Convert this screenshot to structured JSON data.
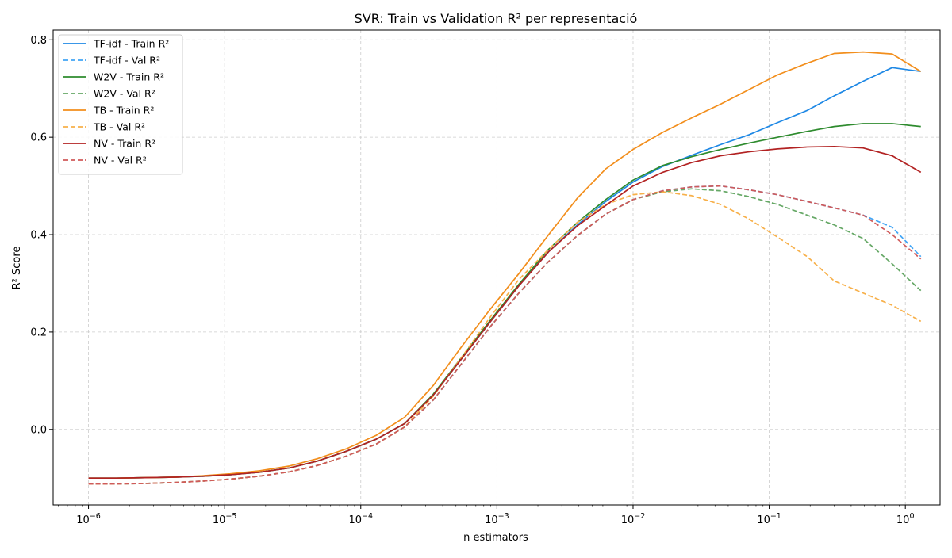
{
  "chart_data": {
    "type": "line",
    "title": "SVR: Train vs Validation R² per representació",
    "xlabel": "n estimators",
    "ylabel": "R² Score",
    "xscale": "log",
    "xlim": [
      5.5e-07,
      1.8
    ],
    "ylim": [
      -0.155,
      0.82
    ],
    "grid": true,
    "legend_position": "top-left",
    "yticks": [
      0.0,
      0.2,
      0.4,
      0.6,
      0.8
    ],
    "ytick_labels": [
      "0.0",
      "0.2",
      "0.4",
      "0.6",
      "0.8"
    ],
    "xticks": [
      {
        "value": 1e-06,
        "base": "10",
        "exp": "−6"
      },
      {
        "value": 1e-05,
        "base": "10",
        "exp": "−5"
      },
      {
        "value": 0.0001,
        "base": "10",
        "exp": "−4"
      },
      {
        "value": 0.001,
        "base": "10",
        "exp": "−3"
      },
      {
        "value": 0.01,
        "base": "10",
        "exp": "−2"
      },
      {
        "value": 0.1,
        "base": "10",
        "exp": "−1"
      },
      {
        "value": 1,
        "base": "10",
        "exp": "0"
      }
    ],
    "x": [
      1e-06,
      1.6e-06,
      2.6e-06,
      4.3e-06,
      7e-06,
      1.1e-05,
      1.8e-05,
      3e-05,
      4.8e-05,
      7.8e-05,
      0.00013,
      0.00021,
      0.00034,
      0.00055,
      0.0009,
      0.00145,
      0.0024,
      0.0039,
      0.0063,
      0.01,
      0.0165,
      0.027,
      0.044,
      0.071,
      0.115,
      0.19,
      0.3,
      0.49,
      0.8,
      1.3
    ],
    "series": [
      {
        "name": "TF-idf - Train R²",
        "color": "#1e88e5",
        "dash": "solid",
        "values": [
          -0.1,
          -0.1,
          -0.099,
          -0.098,
          -0.096,
          -0.093,
          -0.088,
          -0.079,
          -0.065,
          -0.045,
          -0.02,
          0.012,
          0.07,
          0.145,
          0.222,
          0.295,
          0.365,
          0.42,
          0.468,
          0.508,
          0.54,
          0.563,
          0.585,
          0.605,
          0.63,
          0.655,
          0.685,
          0.715,
          0.743,
          0.735
        ]
      },
      {
        "name": "TF-idf - Val R²",
        "color": "#42a5f5",
        "dash": "dashed",
        "values": [
          -0.112,
          -0.112,
          -0.111,
          -0.109,
          -0.106,
          -0.102,
          -0.096,
          -0.087,
          -0.074,
          -0.055,
          -0.03,
          0.005,
          0.06,
          0.135,
          0.212,
          0.28,
          0.345,
          0.398,
          0.442,
          0.472,
          0.49,
          0.498,
          0.5,
          0.492,
          0.482,
          0.468,
          0.455,
          0.44,
          0.415,
          0.355
        ]
      },
      {
        "name": "W2V - Train R²",
        "color": "#2e8b2e",
        "dash": "solid",
        "values": [
          -0.1,
          -0.1,
          -0.099,
          -0.098,
          -0.096,
          -0.093,
          -0.088,
          -0.079,
          -0.065,
          -0.045,
          -0.02,
          0.012,
          0.072,
          0.148,
          0.225,
          0.298,
          0.37,
          0.425,
          0.472,
          0.512,
          0.542,
          0.56,
          0.575,
          0.588,
          0.6,
          0.612,
          0.622,
          0.628,
          0.628,
          0.622
        ]
      },
      {
        "name": "W2V - Val R²",
        "color": "#66a866",
        "dash": "dashed",
        "values": [
          -0.112,
          -0.112,
          -0.111,
          -0.109,
          -0.106,
          -0.102,
          -0.096,
          -0.087,
          -0.074,
          -0.055,
          -0.03,
          0.005,
          0.06,
          0.135,
          0.212,
          0.28,
          0.345,
          0.398,
          0.442,
          0.472,
          0.488,
          0.494,
          0.49,
          0.478,
          0.462,
          0.44,
          0.42,
          0.392,
          0.34,
          0.285
        ]
      },
      {
        "name": "TB - Train R²",
        "color": "#f28e1c",
        "dash": "solid",
        "values": [
          -0.1,
          -0.1,
          -0.099,
          -0.098,
          -0.095,
          -0.091,
          -0.085,
          -0.075,
          -0.06,
          -0.04,
          -0.012,
          0.025,
          0.09,
          0.17,
          0.248,
          0.32,
          0.4,
          0.475,
          0.535,
          0.575,
          0.61,
          0.64,
          0.668,
          0.698,
          0.728,
          0.752,
          0.772,
          0.775,
          0.771,
          0.735
        ]
      },
      {
        "name": "TB - Val R²",
        "color": "#f7b04a",
        "dash": "dashed",
        "values": [
          -0.112,
          -0.112,
          -0.111,
          -0.109,
          -0.106,
          -0.102,
          -0.096,
          -0.087,
          -0.074,
          -0.055,
          -0.03,
          0.005,
          0.068,
          0.148,
          0.232,
          0.308,
          0.37,
          0.425,
          0.462,
          0.482,
          0.488,
          0.48,
          0.462,
          0.432,
          0.395,
          0.355,
          0.305,
          0.28,
          0.255,
          0.222
        ]
      },
      {
        "name": "NV - Train R²",
        "color": "#b22222",
        "dash": "solid",
        "values": [
          -0.1,
          -0.1,
          -0.099,
          -0.098,
          -0.096,
          -0.093,
          -0.088,
          -0.079,
          -0.065,
          -0.045,
          -0.02,
          0.012,
          0.07,
          0.145,
          0.222,
          0.295,
          0.365,
          0.418,
          0.46,
          0.5,
          0.528,
          0.548,
          0.562,
          0.57,
          0.576,
          0.58,
          0.581,
          0.578,
          0.562,
          0.528
        ]
      },
      {
        "name": "NV - Val R²",
        "color": "#d05a5a",
        "dash": "dashed",
        "values": [
          -0.112,
          -0.112,
          -0.111,
          -0.109,
          -0.106,
          -0.102,
          -0.096,
          -0.087,
          -0.074,
          -0.055,
          -0.03,
          0.005,
          0.06,
          0.135,
          0.212,
          0.28,
          0.345,
          0.398,
          0.442,
          0.472,
          0.49,
          0.498,
          0.5,
          0.492,
          0.482,
          0.468,
          0.455,
          0.44,
          0.4,
          0.35
        ]
      }
    ]
  }
}
